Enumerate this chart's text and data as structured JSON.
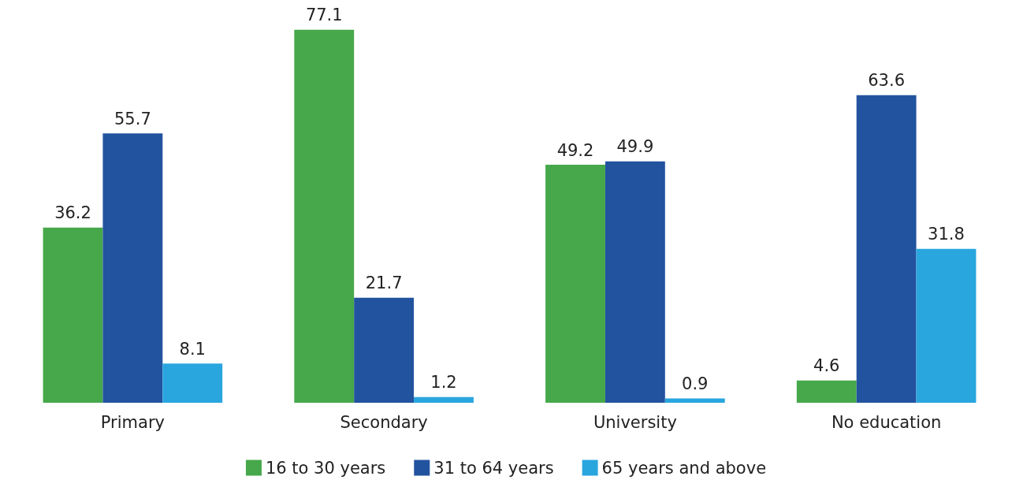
{
  "chart_data": {
    "type": "bar",
    "categories": [
      "Primary",
      "Secondary",
      "University",
      "No education"
    ],
    "series": [
      {
        "name": "16 to 30 years",
        "color": "#46a84a",
        "values": [
          36.2,
          77.1,
          49.2,
          4.6
        ]
      },
      {
        "name": "31 to 64 years",
        "color": "#22539f",
        "values": [
          55.7,
          21.7,
          49.9,
          63.6
        ]
      },
      {
        "name": "65 years and above",
        "color": "#2aa6df",
        "values": [
          8.1,
          1.2,
          0.9,
          31.8
        ]
      }
    ],
    "data_labels": true,
    "legend": "bottom",
    "grid": false
  }
}
